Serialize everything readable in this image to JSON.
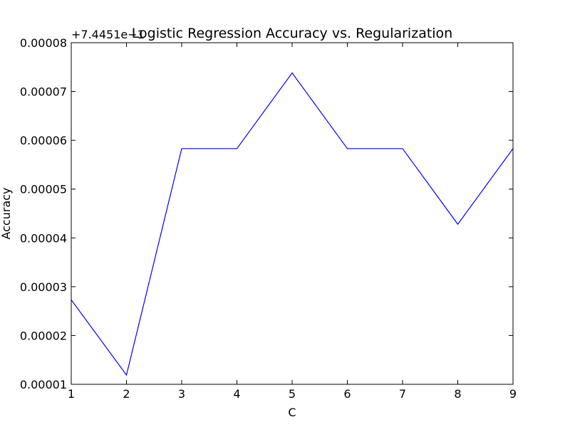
{
  "chart_data": {
    "type": "line",
    "title": "Logistic Regression Accuracy vs. Regularization",
    "xlabel": "C",
    "ylabel": "Accuracy",
    "y_offset_text": "+7.4451e−1",
    "x": [
      1,
      2,
      3,
      4,
      5,
      6,
      7,
      8,
      9
    ],
    "series": [
      {
        "values": [
          2.73e-05,
          1.19e-05,
          5.83e-05,
          5.83e-05,
          7.38e-05,
          5.83e-05,
          5.83e-05,
          4.28e-05,
          5.83e-05
        ],
        "color": "#0000ff"
      }
    ],
    "xlim": [
      1,
      9
    ],
    "ylim": [
      1e-05,
      8e-05
    ],
    "xticks": [
      {
        "value": 1,
        "label": "1"
      },
      {
        "value": 2,
        "label": "2"
      },
      {
        "value": 3,
        "label": "3"
      },
      {
        "value": 4,
        "label": "4"
      },
      {
        "value": 5,
        "label": "5"
      },
      {
        "value": 6,
        "label": "6"
      },
      {
        "value": 7,
        "label": "7"
      },
      {
        "value": 8,
        "label": "8"
      },
      {
        "value": 9,
        "label": "9"
      }
    ],
    "yticks": [
      {
        "value": 1e-05,
        "label": "0.00001"
      },
      {
        "value": 2e-05,
        "label": "0.00002"
      },
      {
        "value": 3e-05,
        "label": "0.00003"
      },
      {
        "value": 4e-05,
        "label": "0.00004"
      },
      {
        "value": 5e-05,
        "label": "0.00005"
      },
      {
        "value": 6e-05,
        "label": "0.00006"
      },
      {
        "value": 7e-05,
        "label": "0.00007"
      },
      {
        "value": 8e-05,
        "label": "0.00008"
      }
    ],
    "grid": false,
    "legend": "none"
  }
}
